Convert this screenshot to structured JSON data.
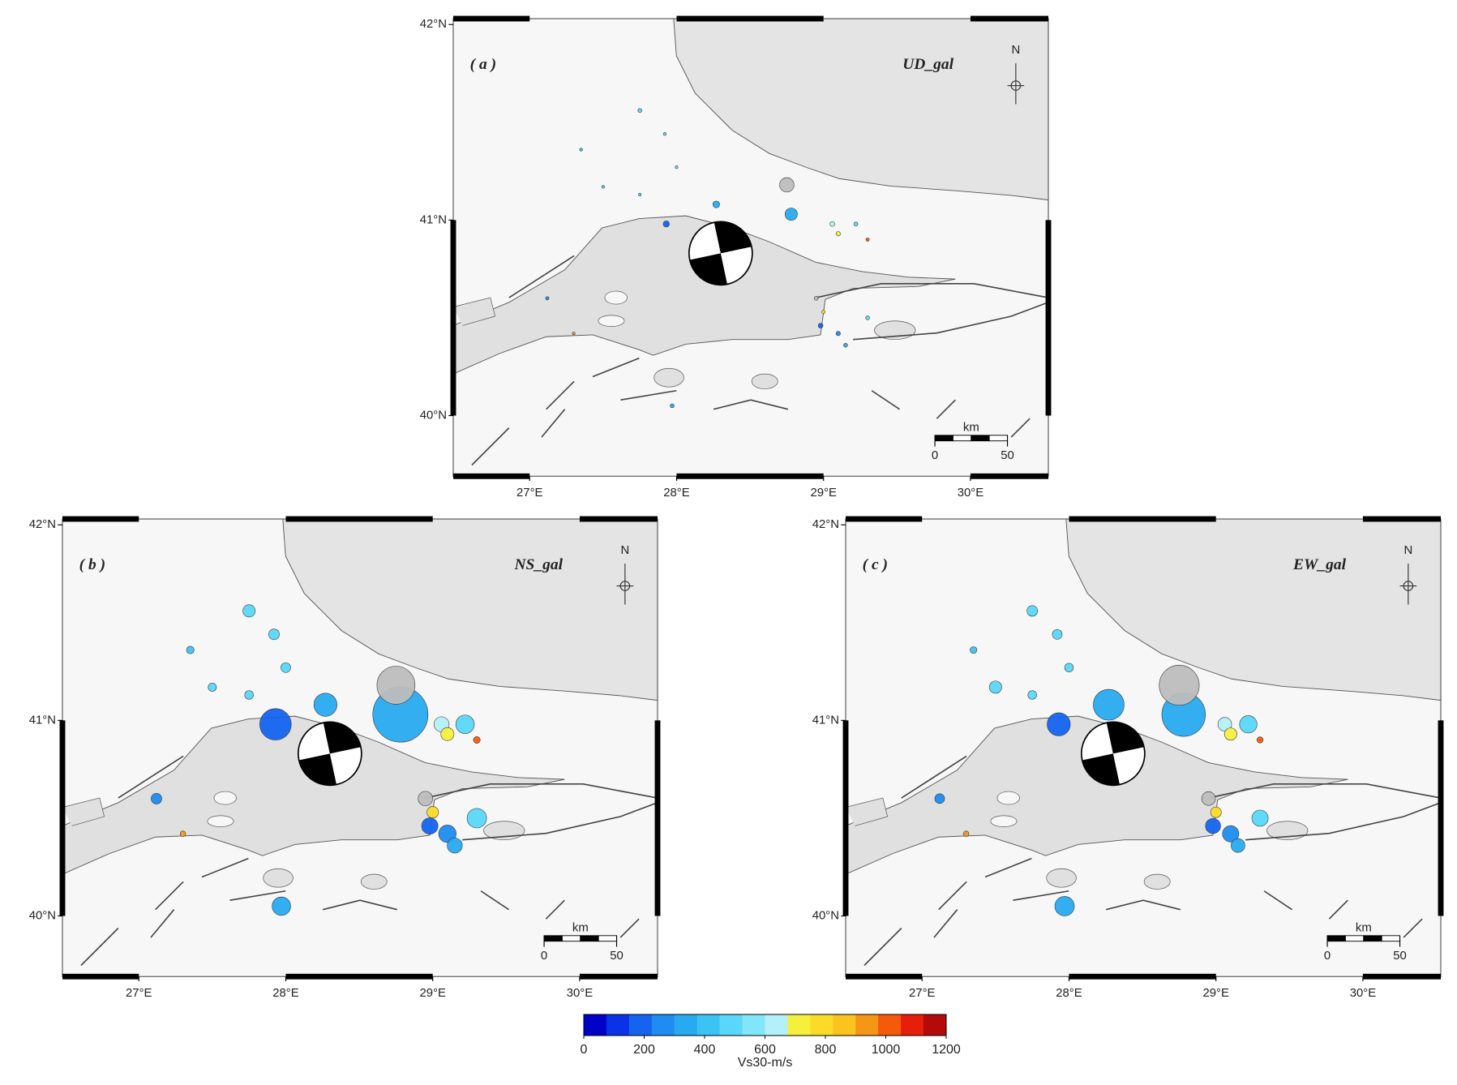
{
  "lonlim": [
    26.48,
    30.53
  ],
  "latlim": [
    39.69,
    42.03
  ],
  "lon_ticks": [
    {
      "value": 27,
      "label": "27°E"
    },
    {
      "value": 28,
      "label": "28°E"
    },
    {
      "value": 29,
      "label": "29°E"
    },
    {
      "value": 30,
      "label": "30°E"
    }
  ],
  "lat_ticks": [
    {
      "value": 42,
      "label": "42°N"
    },
    {
      "value": 41,
      "label": "41°N"
    },
    {
      "value": 40,
      "label": "40°N"
    }
  ],
  "north": "N",
  "scale_bar": {
    "unit": "km",
    "ticks": [
      0,
      50
    ]
  },
  "panels": [
    {
      "label": "( a )",
      "component": "UD_gal",
      "pga": [
        4,
        2,
        2,
        1,
        1,
        2,
        10,
        12,
        40,
        55,
        6,
        5,
        4,
        3,
        3,
        6,
        5,
        4,
        4,
        3,
        4,
        4,
        1
      ]
    },
    {
      "label": "( b )",
      "component": "NS_gal",
      "pga": [
        40,
        30,
        25,
        15,
        18,
        20,
        260,
        140,
        800,
        380,
        60,
        45,
        90,
        12,
        30,
        70,
        80,
        60,
        100,
        35,
        90,
        55,
        8
      ]
    },
    {
      "label": "( c )",
      "component": "EW_gal",
      "pga": [
        30,
        25,
        20,
        12,
        40,
        20,
        140,
        250,
        500,
        420,
        50,
        40,
        80,
        10,
        25,
        60,
        70,
        50,
        70,
        30,
        100,
        50,
        8
      ]
    }
  ],
  "stations": [
    {
      "lon": 27.75,
      "lat": 41.56,
      "vs30": 450
    },
    {
      "lon": 27.92,
      "lat": 41.44,
      "vs30": 450
    },
    {
      "lon": 28.0,
      "lat": 41.27,
      "vs30": 450
    },
    {
      "lon": 27.35,
      "lat": 41.36,
      "vs30": 400
    },
    {
      "lon": 27.5,
      "lat": 41.17,
      "vs30": 450
    },
    {
      "lon": 27.75,
      "lat": 41.13,
      "vs30": 450
    },
    {
      "lon": 27.93,
      "lat": 40.98,
      "vs30": 200
    },
    {
      "lon": 28.27,
      "lat": 41.08,
      "vs30": 300
    },
    {
      "lon": 28.78,
      "lat": 41.03,
      "vs30": 350
    },
    {
      "lon": 28.75,
      "lat": 41.18,
      "vs30": null
    },
    {
      "lon": 29.06,
      "lat": 40.98,
      "vs30": 650
    },
    {
      "lon": 29.1,
      "lat": 40.93,
      "vs30": 700
    },
    {
      "lon": 29.22,
      "lat": 40.98,
      "vs30": 500
    },
    {
      "lon": 29.3,
      "lat": 40.9,
      "vs30": 1000
    },
    {
      "lon": 27.12,
      "lat": 40.6,
      "vs30": 250
    },
    {
      "lon": 28.98,
      "lat": 40.46,
      "vs30": 200
    },
    {
      "lon": 29.1,
      "lat": 40.42,
      "vs30": 250
    },
    {
      "lon": 29.15,
      "lat": 40.36,
      "vs30": 300
    },
    {
      "lon": 29.3,
      "lat": 40.5,
      "vs30": 500
    },
    {
      "lon": 29.0,
      "lat": 40.53,
      "vs30": 750
    },
    {
      "lon": 27.97,
      "lat": 40.05,
      "vs30": 300
    },
    {
      "lon": 28.95,
      "lat": 40.6,
      "vs30": null
    },
    {
      "lon": 27.3,
      "lat": 40.42,
      "vs30": 900
    }
  ],
  "colorbar": {
    "label": "Vs30-m/s",
    "lim": [
      0,
      1200
    ],
    "ticks": [
      0,
      200,
      400,
      600,
      800,
      1000,
      1200
    ],
    "null_color": "#bdbdbd",
    "colors": [
      "#0000c8",
      "#0a32e6",
      "#1464f0",
      "#1e8cf0",
      "#28aaf0",
      "#3cc3f5",
      "#5ad7fa",
      "#82e6fa",
      "#b4f0fa",
      "#f5f03c",
      "#fadc28",
      "#fac31e",
      "#f59614",
      "#f55a0a",
      "#e61e0a",
      "#b40a0a"
    ]
  }
}
